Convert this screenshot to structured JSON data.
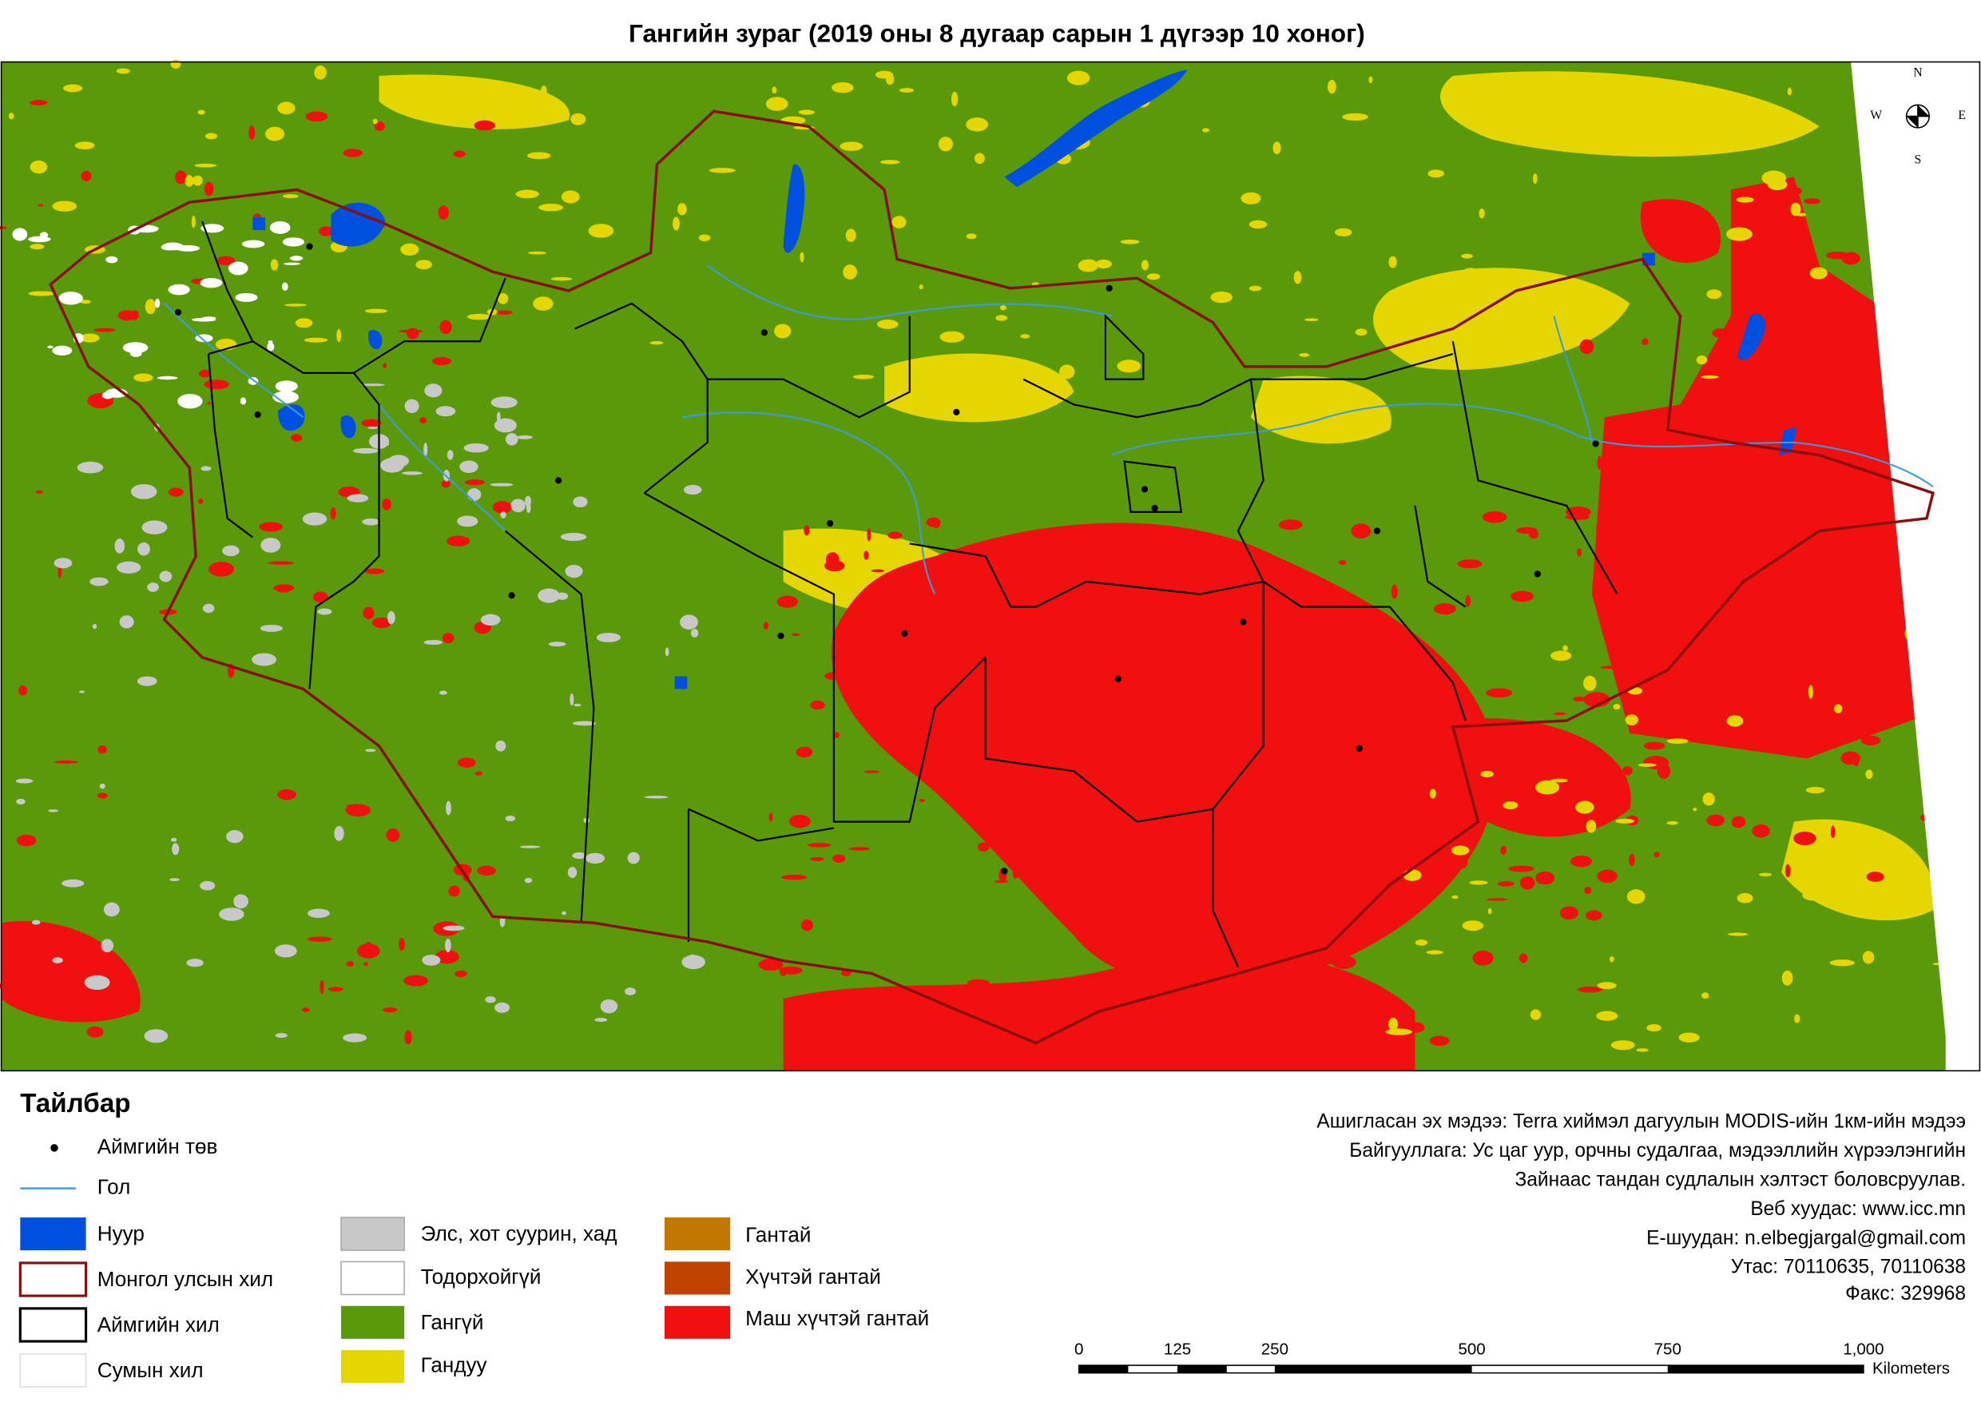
{
  "title": "Гангийн зураг (2019 оны 8 дугаар сарын 1 дүгээр 10 хоног)",
  "compass": {
    "n": "N",
    "s": "S",
    "e": "E",
    "w": "W"
  },
  "legend": {
    "title": "Тайлбар",
    "items": [
      "Аймгийн төв",
      "Гол",
      "Нуур",
      "Монгол улсын хил",
      "Аймгийн хил",
      "Сумын хил",
      "Элс, хот суурин, хад",
      "Тодорхойгүй",
      "Гангүй",
      "Гандуу",
      "Гантай",
      "Хүчтэй гантай",
      "Маш хүчтэй гантай"
    ]
  },
  "info": [
    "Ашигласан эх мэдээ: Terra хиймэл дагуулын MODIS-ийн 1км-ийн мэдээ",
    "Байгууллага: Ус цаг уур, орчны судалгаа, мэдээллийн хүрээлэнгийн",
    "Зайнаас тандан судлалын хэлтэст боловсруулав.",
    "Веб хуудас: www.icc.mn",
    "Е-шуудан: n.elbegjargal@gmail.com",
    "Утас: 70110635, 70110638",
    "Факс: 329968"
  ],
  "scale_bar": {
    "labels": [
      "0",
      "125",
      "250",
      "500",
      "750",
      "1,000"
    ],
    "unit": "Kilometers"
  }
}
